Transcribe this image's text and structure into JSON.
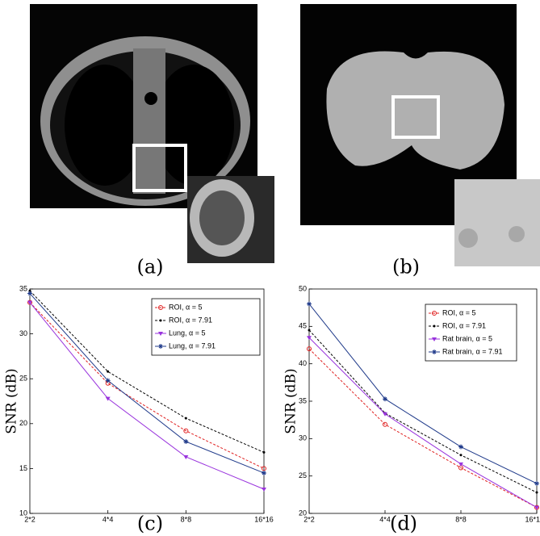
{
  "images": [
    {
      "caption": "(a)"
    },
    {
      "caption": "(b)"
    }
  ],
  "chart_data": [
    {
      "type": "line",
      "caption": "(c)",
      "ylabel": "SNR (dB)",
      "categories": [
        "2*2",
        "4*4",
        "8*8",
        "16*16"
      ],
      "ylim": [
        10,
        35
      ],
      "yticks": [
        10,
        15,
        20,
        25,
        30,
        35
      ],
      "series": [
        {
          "name": "ROI, α = 5",
          "color": "#e02020",
          "style": "dashed",
          "marker": "circle",
          "values": [
            33.5,
            24.5,
            19.2,
            15.0
          ]
        },
        {
          "name": "ROI, α = 7.91",
          "color": "#000000",
          "style": "dashed",
          "marker": "dot",
          "values": [
            34.8,
            25.8,
            20.6,
            16.8
          ]
        },
        {
          "name": "Lung, α = 5",
          "color": "#9933dd",
          "style": "solid",
          "marker": "triangle",
          "values": [
            33.5,
            22.8,
            16.3,
            12.7
          ]
        },
        {
          "name": "Lung, α = 7.91",
          "color": "#1f3a8a",
          "style": "solid",
          "marker": "star",
          "values": [
            34.5,
            24.8,
            18.0,
            14.5
          ]
        }
      ]
    },
    {
      "type": "line",
      "caption": "(d)",
      "ylabel": "SNR (dB)",
      "categories": [
        "2*2",
        "4*4",
        "8*8",
        "16*1"
      ],
      "ylim": [
        20,
        50
      ],
      "yticks": [
        20,
        25,
        30,
        35,
        40,
        45,
        50
      ],
      "series": [
        {
          "name": "ROI, α = 5",
          "color": "#e02020",
          "style": "dashed",
          "marker": "circle",
          "values": [
            42.0,
            31.9,
            26.1,
            20.8
          ]
        },
        {
          "name": "ROI, α = 7.91",
          "color": "#000000",
          "style": "dashed",
          "marker": "dot",
          "values": [
            44.5,
            33.4,
            27.8,
            22.8
          ]
        },
        {
          "name": "Rat brain, α = 5",
          "color": "#9933dd",
          "style": "solid",
          "marker": "triangle",
          "values": [
            43.5,
            33.3,
            26.6,
            20.8
          ]
        },
        {
          "name": "Rat brain, α = 7.91",
          "color": "#1f3a8a",
          "style": "solid",
          "marker": "star",
          "values": [
            48.0,
            35.3,
            28.9,
            24.0
          ]
        }
      ]
    }
  ]
}
